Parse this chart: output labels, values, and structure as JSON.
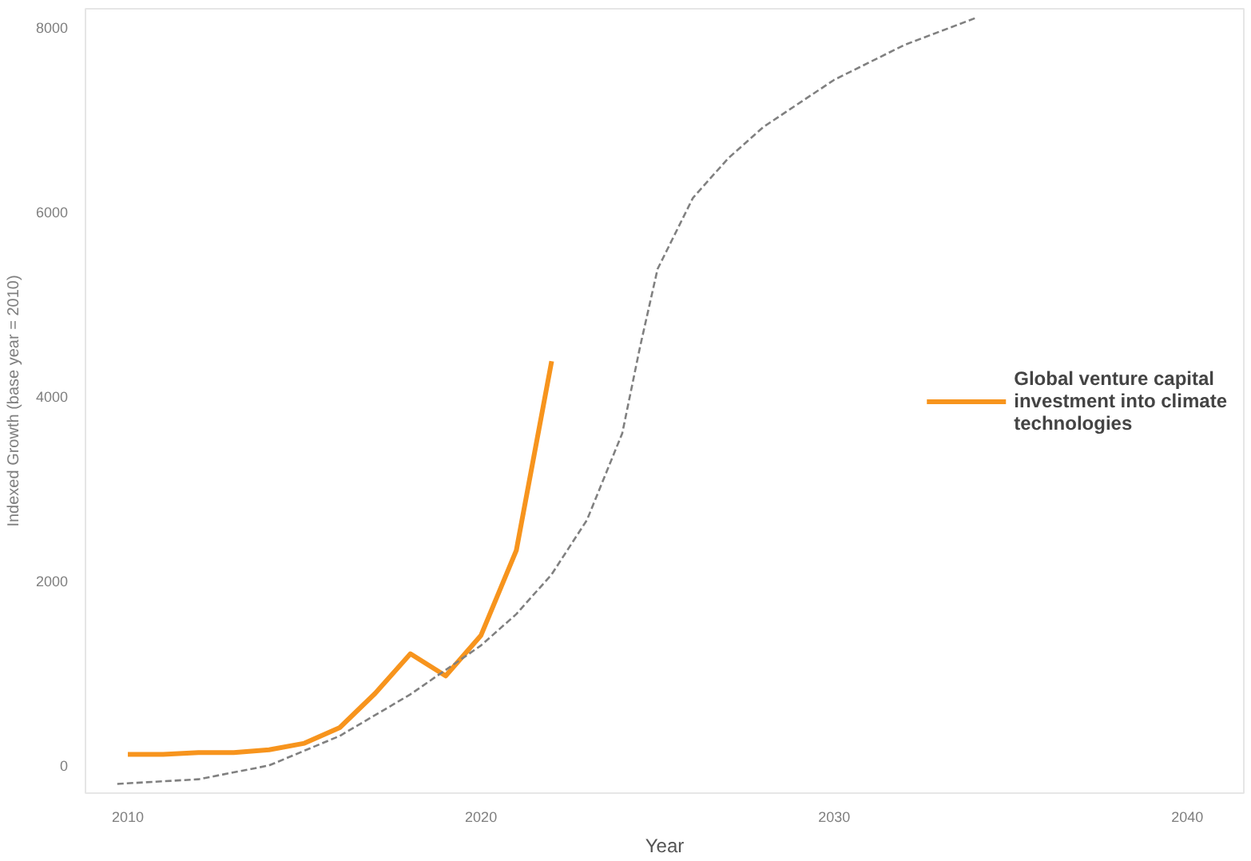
{
  "chart_data": {
    "type": "line",
    "xlabel": "Year",
    "ylabel": "Indexed Growth (base year = 2010)",
    "xlim": [
      2008.8,
      2041.6
    ],
    "xticks": [
      2010,
      2020,
      2030,
      2040
    ],
    "ylim": [
      -300,
      8200
    ],
    "yticks": [
      0,
      2000,
      4000,
      6000,
      8000
    ],
    "grid": false,
    "legend": "right",
    "marker": "none",
    "series": [
      {
        "name": "Global venture capital investment into climate technologies",
        "color": "#f7941d",
        "line_style": "solid",
        "x": [
          2010,
          2011,
          2012,
          2013,
          2014,
          2015,
          2016,
          2017,
          2018,
          2019,
          2020,
          2021,
          2022
        ],
        "values": [
          120,
          120,
          140,
          140,
          170,
          240,
          410,
          780,
          1210,
          970,
          1410,
          2330,
          4380
        ]
      },
      {
        "color": "#808080",
        "line_style": "dashed",
        "x": [
          2009.7,
          2012,
          2014,
          2016,
          2018,
          2020,
          2021,
          2022,
          2023,
          2024,
          2024.5,
          2025,
          2026,
          2027,
          2028,
          2030,
          2032,
          2034
        ],
        "values": [
          -200,
          -150,
          0,
          320,
          770,
          1300,
          1640,
          2070,
          2660,
          3600,
          4530,
          5380,
          6150,
          6580,
          6920,
          7430,
          7810,
          8100
        ]
      }
    ]
  }
}
